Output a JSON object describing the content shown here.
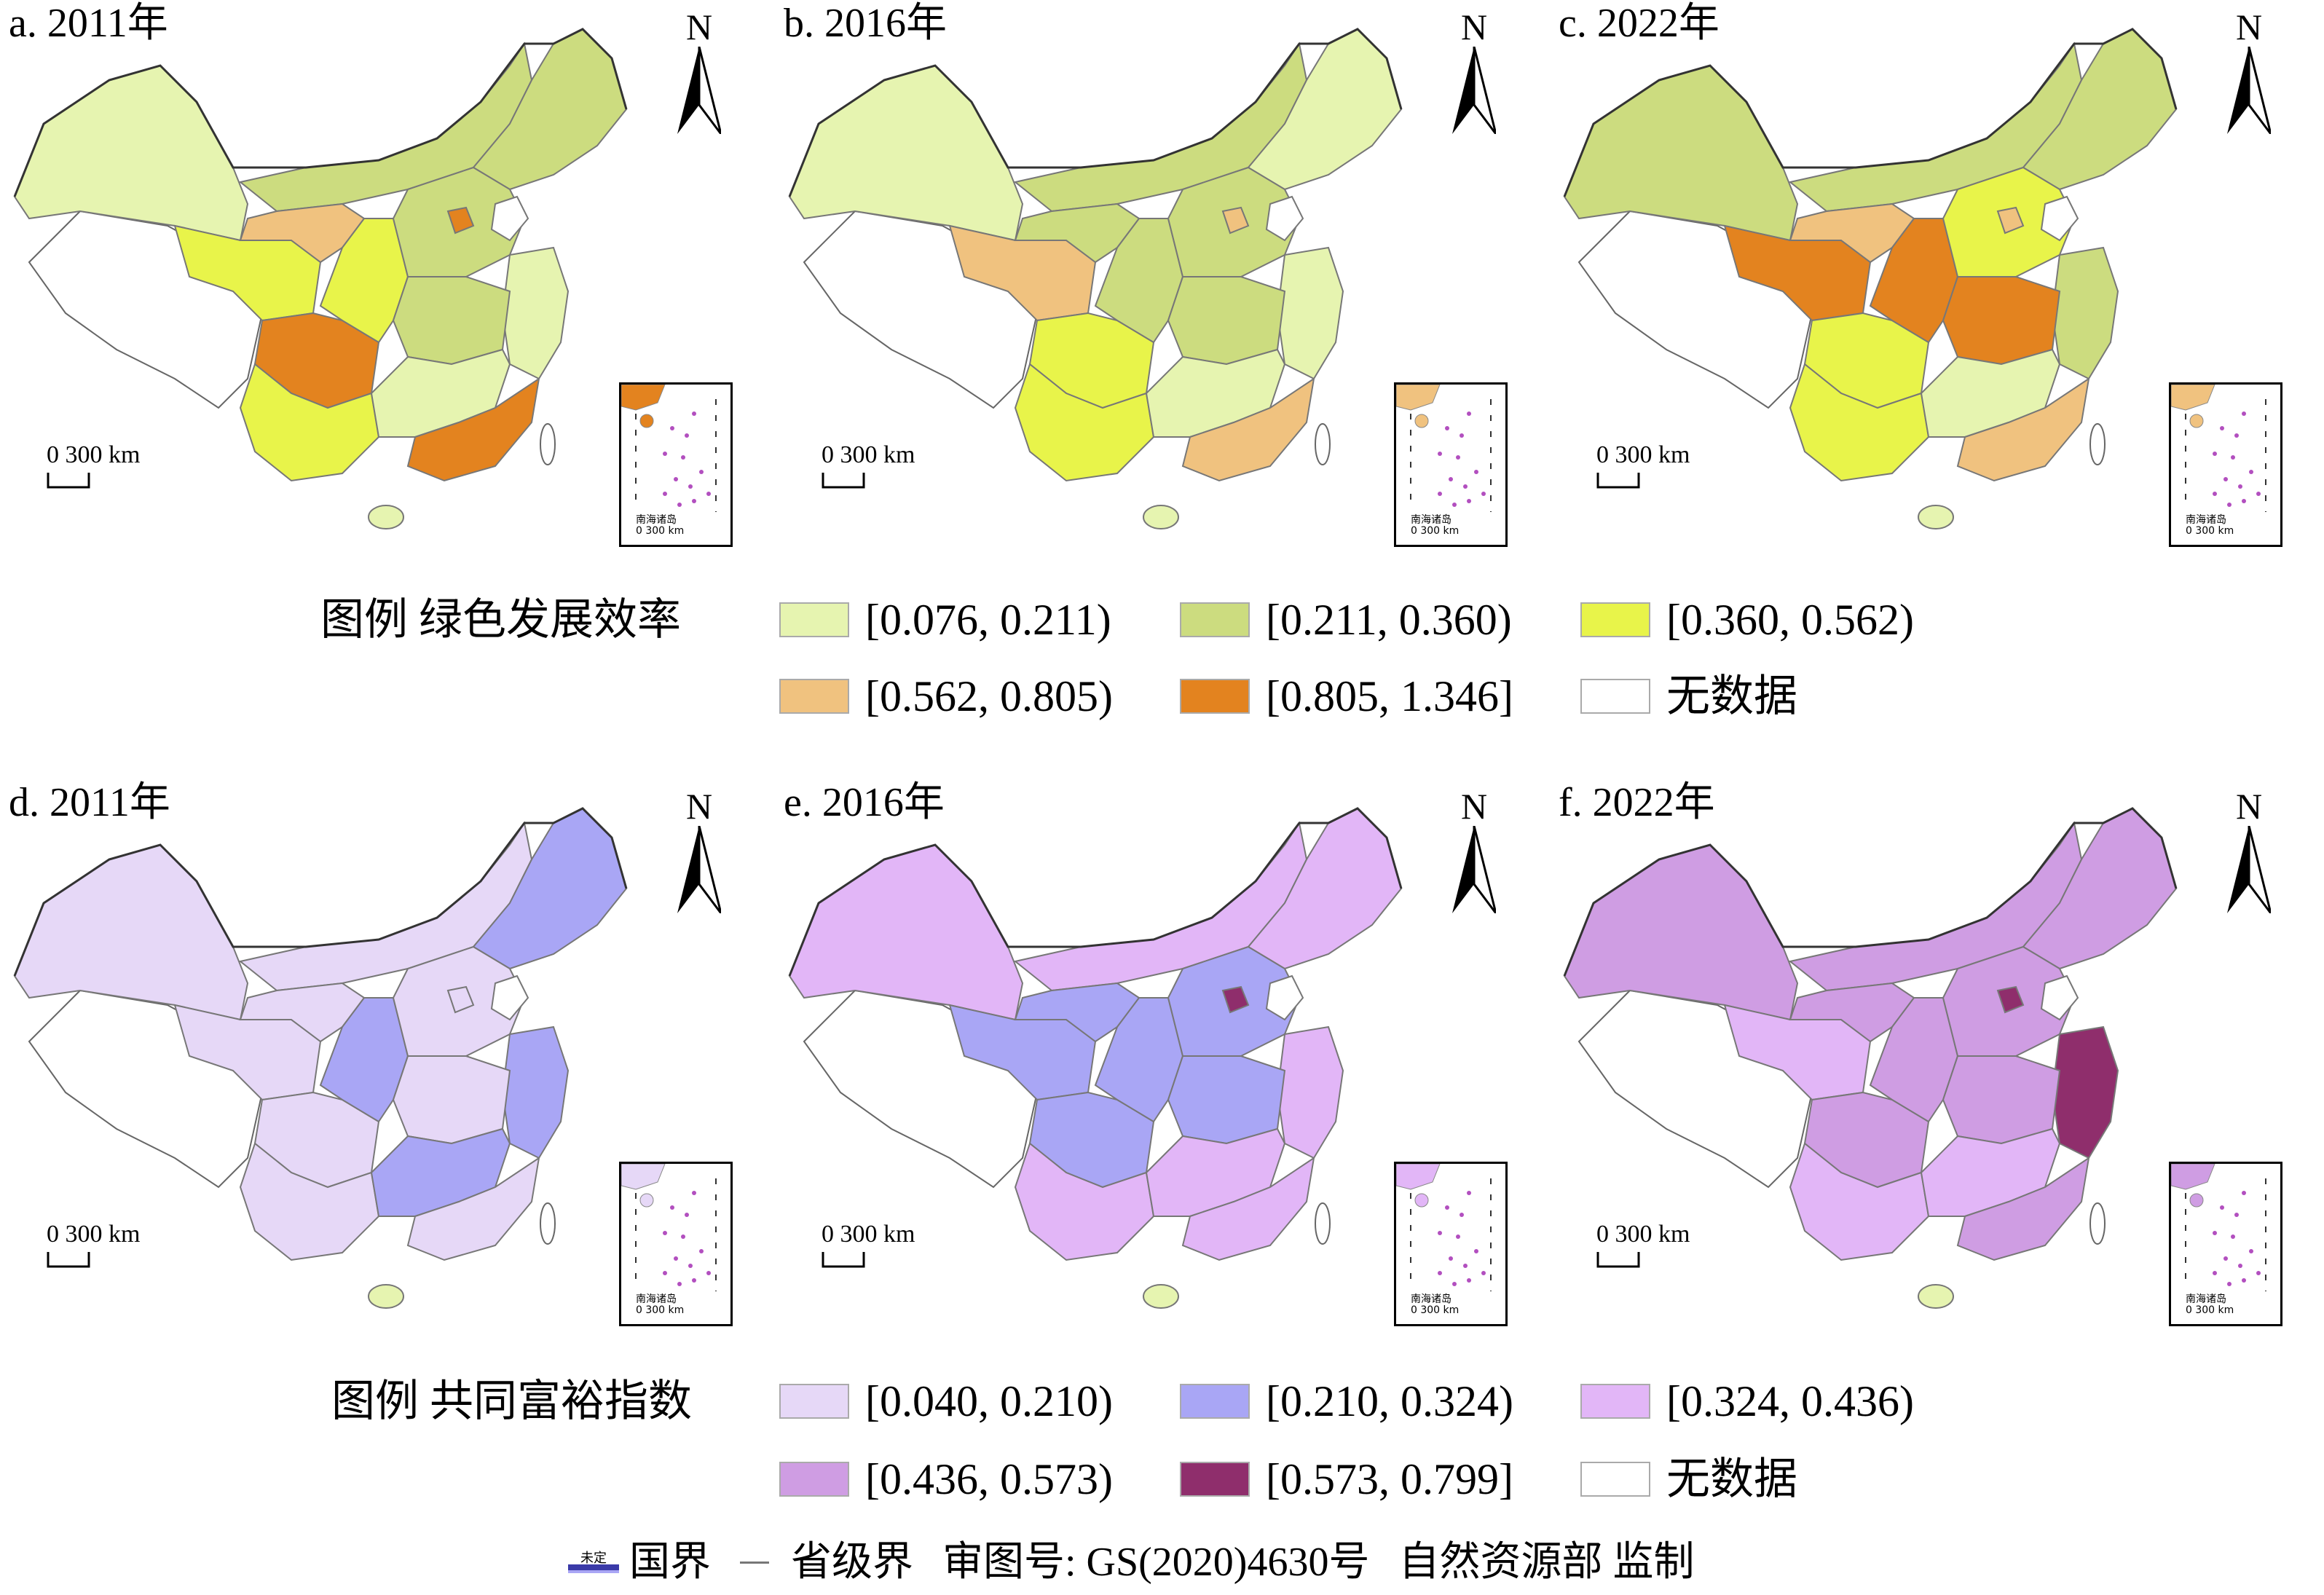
{
  "panels": [
    {
      "label": "a. 2011年",
      "colors": [
        "#e6f4b0",
        "#ccdc7f",
        "#e8f44a",
        "#f0c27f",
        "#e3831f",
        "#e8f44a",
        "#ccdc7f",
        "#ccdc7f",
        "#e6f4b0",
        "#e3831f",
        "#ccdc7f",
        "#e8f44a",
        "#e6f4b0",
        "#e3831f"
      ]
    },
    {
      "label": "b. 2016年",
      "colors": [
        "#e6f4b0",
        "#ccdc7f",
        "#f0c27f",
        "#ccdc7f",
        "#e8f44a",
        "#ccdc7f",
        "#e6f4b0",
        "#ccdc7f",
        "#e6f4b0",
        "#f0c27f",
        "#ccdc7f",
        "#e8f44a",
        "#e6f4b0",
        "#f0c27f"
      ]
    },
    {
      "label": "c. 2022年",
      "colors": [
        "#ccdc7f",
        "#ccdc7f",
        "#e3831f",
        "#f0c27f",
        "#e8f44a",
        "#e3831f",
        "#ccdc7f",
        "#e8f44a",
        "#ccdc7f",
        "#f0c27f",
        "#e3831f",
        "#e8f44a",
        "#e6f4b0",
        "#f0c27f"
      ]
    },
    {
      "label": "d. 2011年",
      "colors": [
        "#e6d8f7",
        "#e6d8f7",
        "#e6d8f7",
        "#e6d8f7",
        "#e6d8f7",
        "#a9a6f5",
        "#a9a6f5",
        "#e6d8f7",
        "#a9a6f5",
        "#e6d8f7",
        "#e6d8f7",
        "#e6d8f7",
        "#a9a6f5",
        "#e6d8f7"
      ]
    },
    {
      "label": "e. 2016年",
      "colors": [
        "#e2b6f7",
        "#e2b6f7",
        "#a9a6f5",
        "#a9a6f5",
        "#a9a6f5",
        "#a9a6f5",
        "#e2b6f7",
        "#a9a6f5",
        "#e2b6f7",
        "#8f2e6c",
        "#a9a6f5",
        "#e2b6f7",
        "#e2b6f7",
        "#e2b6f7"
      ]
    },
    {
      "label": "f. 2022年",
      "colors": [
        "#cf9de3",
        "#cf9de3",
        "#e2b6f7",
        "#cf9de3",
        "#cf9de3",
        "#cf9de3",
        "#cf9de3",
        "#cf9de3",
        "#8f2e6c",
        "#8f2e6c",
        "#cf9de3",
        "#e2b6f7",
        "#e2b6f7",
        "#cf9de3"
      ]
    }
  ],
  "map_text": {
    "north": "N",
    "scale": "0 300 km",
    "inset_label": "南海诸岛",
    "inset_scale": "0  300 km"
  },
  "legend_top": {
    "heading": "图例   绿色发展效率",
    "items": [
      {
        "label": "[0.076, 0.211)",
        "color": "#e6f4b0"
      },
      {
        "label": "[0.211, 0.360)",
        "color": "#ccdc7f"
      },
      {
        "label": "[0.360, 0.562)",
        "color": "#e8f44a"
      },
      {
        "label": "[0.562, 0.805)",
        "color": "#f0c27f"
      },
      {
        "label": "[0.805, 1.346]",
        "color": "#e3831f"
      },
      {
        "label": "无数据",
        "color": "#ffffff"
      }
    ]
  },
  "legend_bottom": {
    "heading": "图例  共同富裕指数",
    "items": [
      {
        "label": "[0.040, 0.210)",
        "color": "#e6d8f7"
      },
      {
        "label": "[0.210, 0.324)",
        "color": "#a9a6f5"
      },
      {
        "label": "[0.324, 0.436)",
        "color": "#e2b6f7"
      },
      {
        "label": "[0.436, 0.573)",
        "color": "#cf9de3"
      },
      {
        "label": "[0.573, 0.799]",
        "color": "#8f2e6c"
      },
      {
        "label": "无数据",
        "color": "#ffffff"
      }
    ]
  },
  "footer": {
    "undetermined_mark": "未定",
    "national_border": "国界",
    "provincial_border": "省级界",
    "approval": "审图号: GS(2020)4630号",
    "authority": "自然资源部 监制"
  }
}
